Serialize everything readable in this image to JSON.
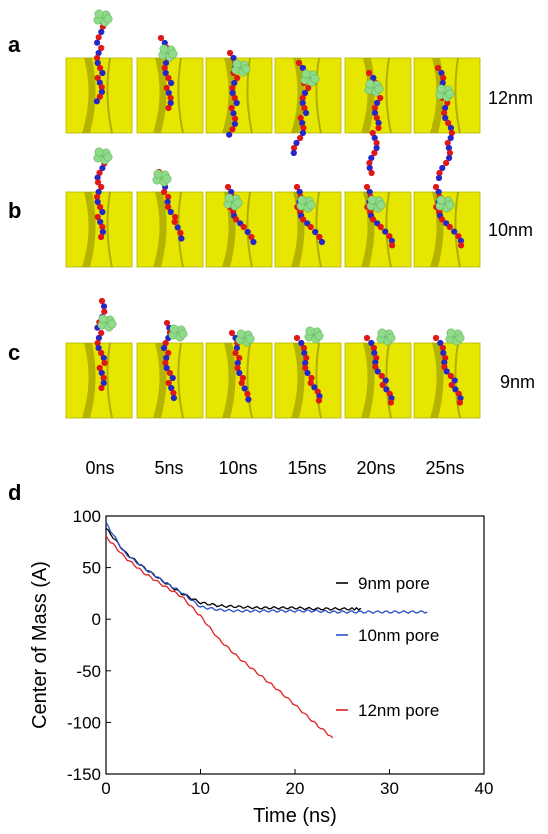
{
  "panels": {
    "a": {
      "letter": "a",
      "pore_label": "12nm"
    },
    "b": {
      "letter": "b",
      "pore_label": "10nm"
    },
    "c": {
      "letter": "c",
      "pore_label": "9nm"
    },
    "d": {
      "letter": "d"
    }
  },
  "time_labels": [
    "0ns",
    "5ns",
    "10ns",
    "15ns",
    "20ns",
    "25ns"
  ],
  "colors": {
    "membrane": "#e6e600",
    "membrane_shadow": "#8a8a00",
    "dna_blue": "#2727c8",
    "dna_red": "#e01818",
    "protein": "#8edc8a",
    "line_9nm": "#000000",
    "line_10nm": "#2a52c8",
    "line_12nm": "#e02020"
  },
  "chart_data": {
    "type": "line",
    "xlabel": "Time (ns)",
    "ylabel": "Center of Mass (A)",
    "xlim": [
      0,
      40
    ],
    "ylim": [
      -150,
      100
    ],
    "xticks": [
      "0",
      "10",
      "20",
      "30",
      "40"
    ],
    "yticks": [
      "100",
      "50",
      "0",
      "-50",
      "-100",
      "-150"
    ],
    "legend_placement": "inline-right",
    "series": [
      {
        "name": "9nm pore",
        "color": "#000000",
        "x": [
          0,
          2,
          4,
          6,
          8,
          10,
          12,
          14,
          16,
          18,
          20,
          22,
          24,
          26,
          27
        ],
        "y": [
          88,
          65,
          50,
          37,
          25,
          16,
          13,
          12,
          11,
          11,
          11,
          10,
          10,
          10,
          10
        ]
      },
      {
        "name": "10nm pore",
        "color": "#2a52c8",
        "x": [
          0,
          2,
          4,
          6,
          8,
          10,
          12,
          14,
          16,
          18,
          20,
          22,
          24,
          26,
          28,
          30,
          32,
          34
        ],
        "y": [
          93,
          64,
          50,
          37,
          26,
          12,
          9,
          8,
          8,
          8,
          8,
          8,
          7,
          7,
          7,
          7,
          7,
          7
        ]
      },
      {
        "name": "12nm pore",
        "color": "#e02020",
        "x": [
          0,
          2,
          4,
          6,
          8,
          10,
          12,
          14,
          16,
          18,
          20,
          22,
          24
        ],
        "y": [
          80,
          60,
          45,
          33,
          22,
          3,
          -20,
          -37,
          -52,
          -67,
          -83,
          -100,
          -115
        ]
      }
    ]
  }
}
